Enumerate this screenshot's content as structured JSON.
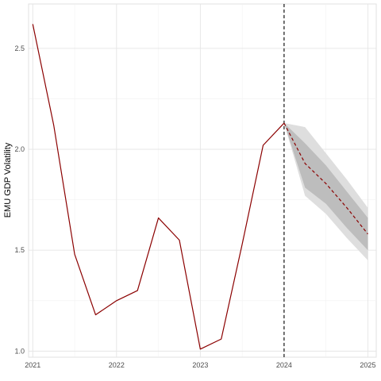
{
  "chart_data": {
    "type": "line",
    "title": "",
    "xlabel": "",
    "ylabel": "EMU GDP Volatility",
    "xlim": [
      2020.95,
      2025.1
    ],
    "ylim": [
      0.97,
      2.72
    ],
    "x_ticks": [
      2021,
      2022,
      2023,
      2024,
      2025
    ],
    "x_tick_labels": [
      "2021",
      "2022",
      "2023",
      "2024",
      "2025"
    ],
    "y_ticks": [
      1.0,
      1.5,
      2.0,
      2.5
    ],
    "y_tick_labels": [
      "1.0",
      "1.5",
      "2.0",
      "2.5"
    ],
    "grid": true,
    "forecast_start": 2024,
    "series": [
      {
        "role": "observed",
        "color": "#8b0000",
        "style": "solid",
        "x": [
          2021.0,
          2021.25,
          2021.5,
          2021.75,
          2022.0,
          2022.25,
          2022.5,
          2022.75,
          2023.0,
          2023.25,
          2023.5,
          2023.75,
          2024.0
        ],
        "values": [
          2.62,
          2.12,
          1.48,
          1.18,
          1.25,
          1.3,
          1.66,
          1.55,
          1.01,
          1.06,
          1.53,
          2.02,
          2.13
        ]
      },
      {
        "role": "forecast",
        "color": "#8b0000",
        "style": "dashed",
        "x": [
          2024.0,
          2024.25,
          2024.5,
          2024.75,
          2025.0
        ],
        "values": [
          2.13,
          1.93,
          1.83,
          1.71,
          1.58
        ]
      }
    ],
    "bands": [
      {
        "role": "outer-interval",
        "color": "#dedede",
        "x": [
          2024.0,
          2024.25,
          2024.5,
          2024.75,
          2025.0
        ],
        "lower": [
          2.13,
          1.77,
          1.68,
          1.56,
          1.45
        ],
        "upper": [
          2.13,
          2.11,
          1.98,
          1.85,
          1.71
        ]
      },
      {
        "role": "inner-interval",
        "color": "#bdbdbd",
        "x": [
          2024.0,
          2024.25,
          2024.5,
          2024.75,
          2025.0
        ],
        "lower": [
          2.13,
          1.81,
          1.73,
          1.61,
          1.5
        ],
        "upper": [
          2.13,
          2.03,
          1.92,
          1.79,
          1.66
        ]
      }
    ]
  }
}
